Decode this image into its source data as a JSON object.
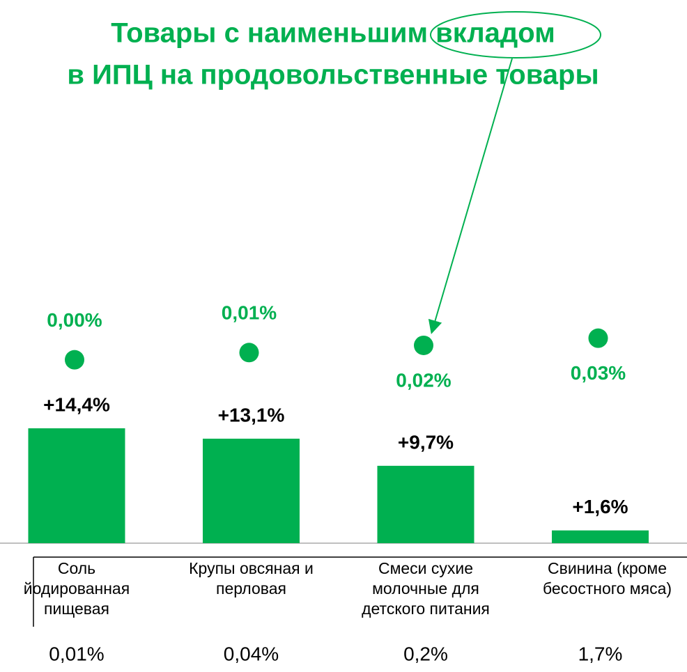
{
  "chart_data": {
    "type": "bar",
    "title": [
      "Товары с наименьшим вкладом",
      "в ИПЦ на продовольственные товары"
    ],
    "categories": [
      [
        "Соль",
        "йодированная",
        "пищевая"
      ],
      [
        "Крупы овсяная и",
        "перловая"
      ],
      [
        "Смеси сухие",
        "молочные для",
        "детского питания"
      ],
      [
        "Свинина (кроме",
        "бесостного мяса)"
      ]
    ],
    "series": [
      {
        "color": "#00b050",
        "values": [
          14.4,
          13.1,
          9.7,
          1.6
        ],
        "value_labels": [
          "+14,4%",
          "+13,1%",
          "+9,7%",
          "+1,6%"
        ]
      },
      {
        "color": "#00b050",
        "axis": "y2",
        "values": [
          0.0,
          0.01,
          0.02,
          0.03
        ],
        "value_labels": [
          "0,00%",
          "0,01%",
          "0,02%",
          "0,03%"
        ]
      }
    ],
    "ylim": [
      0,
      55
    ],
    "y2lim": [
      -0.255,
      0.355
    ],
    "table_row": [
      "0,01%",
      "0,04%",
      "0,2%",
      "1,7%"
    ]
  }
}
